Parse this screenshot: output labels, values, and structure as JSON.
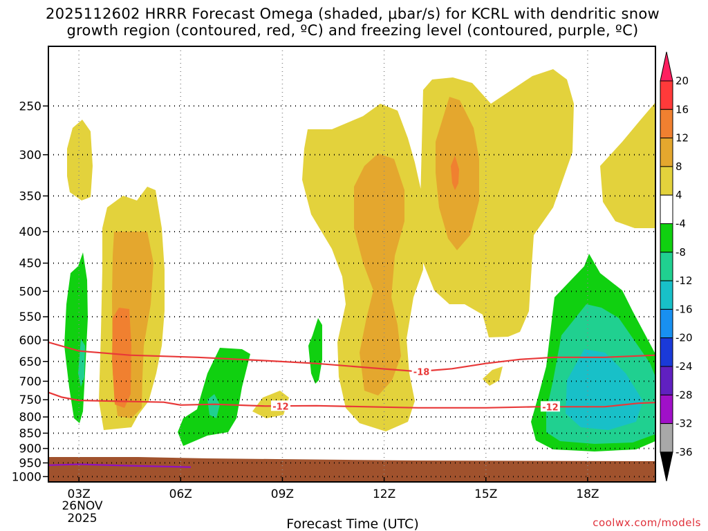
{
  "chart_data": {
    "type": "heatmap",
    "title_lines": [
      "2025112602 HRRR Forecast Omega (shaded, μbar/s) for KCRL with dendritic snow",
      "growth region (contoured, red, ºC) and freezing level (contoured, purple, ºC)"
    ],
    "xlabel": "Forecast Time (UTC)",
    "ylabel": "",
    "x_ticks": [
      {
        "hour": 3,
        "label": "03Z"
      },
      {
        "hour": 6,
        "label": "06Z"
      },
      {
        "hour": 9,
        "label": "09Z"
      },
      {
        "hour": 12,
        "label": "12Z"
      },
      {
        "hour": 15,
        "label": "15Z"
      },
      {
        "hour": 18,
        "label": "18Z"
      }
    ],
    "x_date_label": [
      "26NOV",
      "2025"
    ],
    "xlim": [
      2.1,
      20.0
    ],
    "y_ticks": [
      250,
      300,
      350,
      400,
      450,
      500,
      550,
      600,
      650,
      700,
      750,
      800,
      850,
      900,
      950,
      1000
    ],
    "ylim": [
      1020,
      200
    ],
    "colorbar": {
      "labels": [
        "20",
        "16",
        "12",
        "8",
        "4",
        "-4",
        "-8",
        "-12",
        "-16",
        "-20",
        "-24",
        "-28",
        "-32",
        "-36"
      ],
      "colors": [
        "#ff1f60",
        "#ff3a3a",
        "#f08030",
        "#e4a72e",
        "#e3d23c",
        "#ffffff",
        "#10d010",
        "#20d090",
        "#18c0c8",
        "#1890f0",
        "#1a3ad8",
        "#6020c0",
        "#a010c8",
        "#a8a8a8",
        "#000000"
      ]
    },
    "shading": {
      "above_4": "#e3d23c",
      "above_8": "#e4a72e",
      "above_12": "#f08030",
      "below_minus_4": "#10d010",
      "below_minus_8": "#20d090",
      "below_minus_12": "#18c0c8",
      "terrain": "#a0522d"
    },
    "contours": [
      {
        "name": "dgz-top",
        "value_label": "-18",
        "color": "#e83838",
        "points": [
          [
            2.1,
            605
          ],
          [
            3.0,
            625
          ],
          [
            4.5,
            635
          ],
          [
            6.5,
            640
          ],
          [
            8.5,
            648
          ],
          [
            10.0,
            655
          ],
          [
            11.5,
            665
          ],
          [
            13.0,
            675
          ],
          [
            14.0,
            668
          ],
          [
            15.0,
            655
          ],
          [
            16.0,
            645
          ],
          [
            17.0,
            640
          ],
          [
            18.5,
            640
          ],
          [
            20.0,
            635
          ]
        ]
      },
      {
        "name": "dgz-bottom",
        "value_label": "-12",
        "color": "#e83838",
        "points": [
          [
            2.1,
            730
          ],
          [
            2.5,
            743
          ],
          [
            3.0,
            752
          ],
          [
            4.5,
            755
          ],
          [
            5.5,
            757
          ],
          [
            6.0,
            765
          ],
          [
            7.0,
            763
          ],
          [
            8.5,
            768
          ],
          [
            10.0,
            767
          ],
          [
            11.5,
            770
          ],
          [
            13.0,
            773
          ],
          [
            15.0,
            773
          ],
          [
            16.5,
            770
          ],
          [
            17.5,
            770
          ],
          [
            18.5,
            770
          ],
          [
            19.5,
            760
          ],
          [
            20.0,
            758
          ]
        ]
      },
      {
        "name": "freezing-level",
        "value_label": "",
        "color": "#9010c0",
        "points": [
          [
            2.1,
            958
          ],
          [
            3.0,
            955
          ],
          [
            4.5,
            960
          ],
          [
            6.3,
            965
          ]
        ]
      }
    ],
    "contour_labels": [
      {
        "text": "-18",
        "hour": 13.1,
        "pressure": 675
      },
      {
        "text": "-12",
        "hour": 8.95,
        "pressure": 768
      },
      {
        "text": "-12",
        "hour": 16.9,
        "pressure": 770
      }
    ],
    "credit": "coolwx.com/models"
  }
}
